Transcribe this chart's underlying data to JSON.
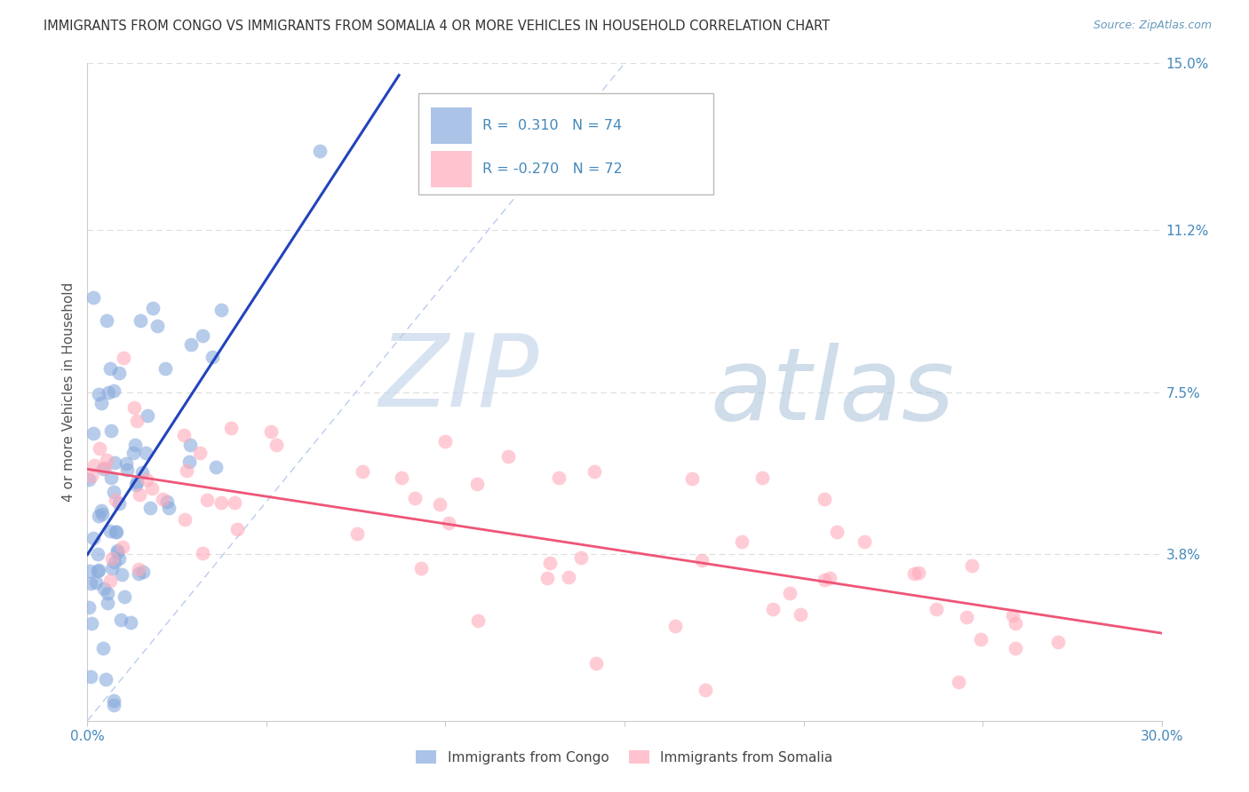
{
  "title": "IMMIGRANTS FROM CONGO VS IMMIGRANTS FROM SOMALIA 4 OR MORE VEHICLES IN HOUSEHOLD CORRELATION CHART",
  "source": "Source: ZipAtlas.com",
  "ylabel": "4 or more Vehicles in Household",
  "xmin": 0.0,
  "xmax": 0.3,
  "ymin": 0.0,
  "ymax": 0.15,
  "yticks": [
    0.038,
    0.075,
    0.112,
    0.15
  ],
  "ytick_labels": [
    "3.8%",
    "7.5%",
    "11.2%",
    "15.0%"
  ],
  "xtick_labels": [
    "0.0%",
    "30.0%"
  ],
  "xtick_positions": [
    0.0,
    0.3
  ],
  "legend_entry1": {
    "label": "Immigrants from Congo",
    "R": " 0.310",
    "N": "74",
    "color": "#88aadd"
  },
  "legend_entry2": {
    "label": "Immigrants from Somalia",
    "R": "-0.270",
    "N": "72",
    "color": "#ffaabb"
  },
  "congo_color": "#88aadd",
  "somalia_color": "#ffaabb",
  "congo_line_color": "#2244bb",
  "somalia_line_color": "#ee5577",
  "diag_line_color": "#bbccee",
  "watermark_zip": "ZIP",
  "watermark_atlas": "atlas",
  "grid_color": "#dddddd",
  "spine_color": "#cccccc",
  "tick_label_color": "#4488bb",
  "title_color": "#333333",
  "source_color": "#6699bb"
}
